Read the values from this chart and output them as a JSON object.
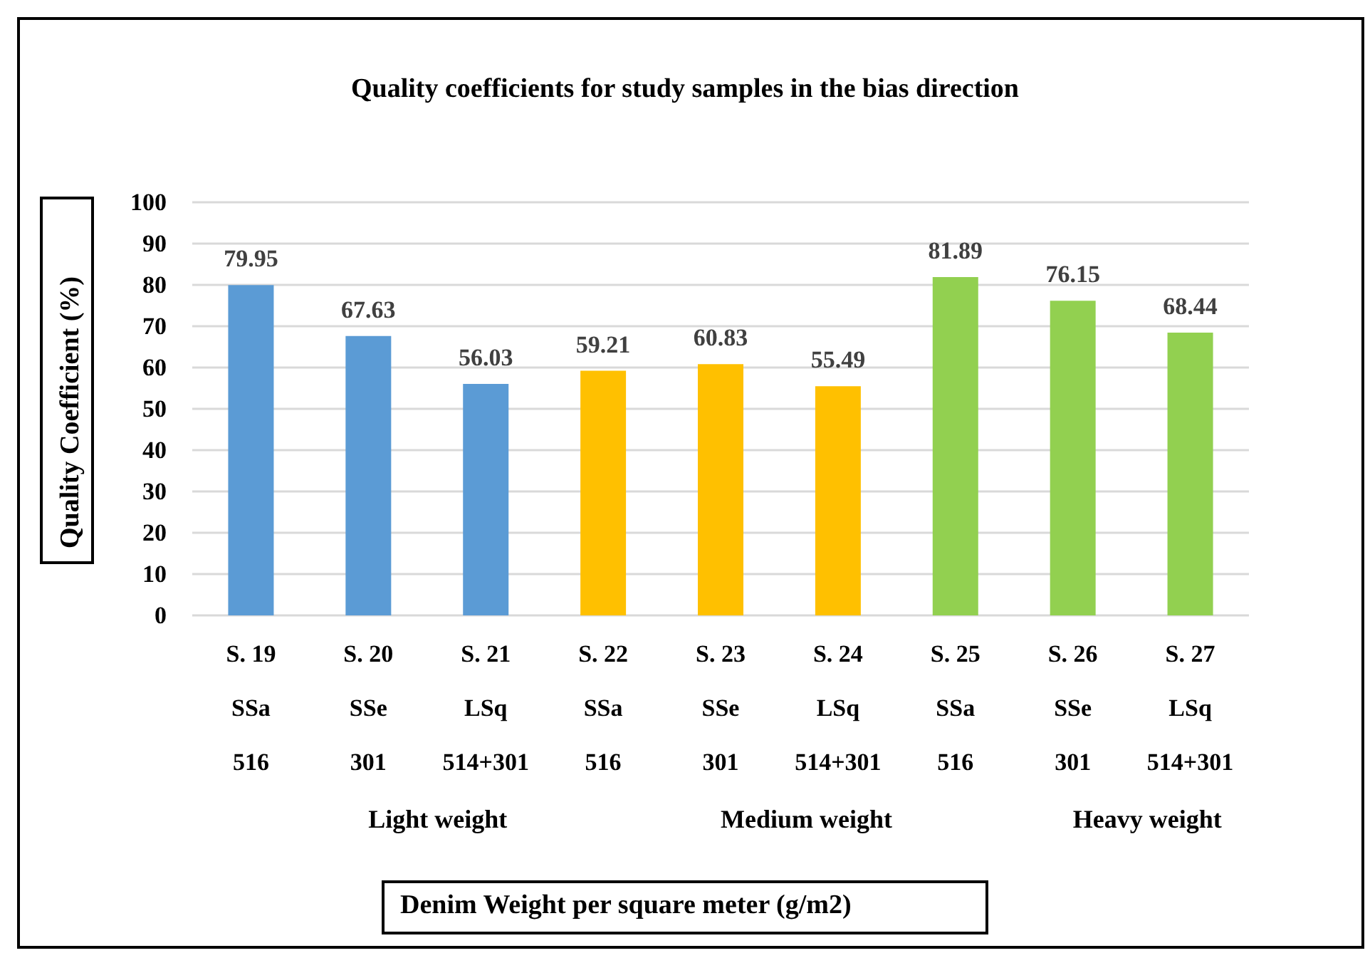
{
  "chart_data": {
    "type": "bar",
    "title": "Quality coefficients for study samples in the bias direction",
    "xlabel": "Denim Weight per square meter (g/m2)",
    "ylabel": "Quality Coefficient (%)",
    "categories": [
      "S. 19\nSSa\n516",
      "S. 20\nSSe\n301",
      "S. 21\nLSq\n514+301",
      "S. 22\nSSa\n516",
      "S. 23\nSSe\n301",
      "S. 24\nLSq\n514+301",
      "S. 25\nSSa\n516",
      "S. 26\nSSe\n301",
      "S. 27\nLSq\n514+301"
    ],
    "values": [
      79.95,
      67.63,
      56.03,
      59.21,
      60.83,
      55.49,
      81.89,
      76.15,
      68.44
    ],
    "colors": [
      "#5b9bd5",
      "#5b9bd5",
      "#5b9bd5",
      "#ffc000",
      "#ffc000",
      "#ffc000",
      "#92d050",
      "#92d050",
      "#92d050"
    ],
    "annotations": [
      "Light weight",
      "Medium weight",
      "Heavy weight"
    ],
    "ylim": [
      0,
      100
    ],
    "yticks": [
      0,
      10,
      20,
      30,
      40,
      50,
      60,
      70,
      80,
      90,
      100
    ],
    "grid": "y",
    "data_labels": true
  }
}
